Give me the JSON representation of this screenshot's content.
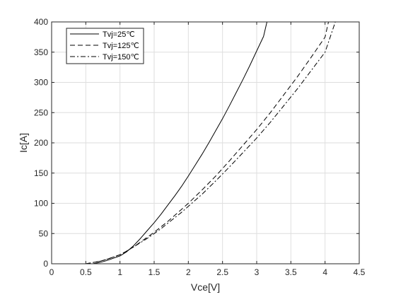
{
  "chart_data": {
    "type": "line",
    "xlabel": "Vce[V]",
    "ylabel": "Ic[A]",
    "xlim": [
      0,
      4.5
    ],
    "ylim": [
      0,
      400
    ],
    "xticks": [
      0,
      0.5,
      1,
      1.5,
      2,
      2.5,
      3,
      3.5,
      4,
      4.5
    ],
    "xtick_labels": [
      "0",
      "0.5",
      "1",
      "1.5",
      "2",
      "2.5",
      "3",
      "3.5",
      "4",
      "4.5"
    ],
    "yticks": [
      0,
      50,
      100,
      150,
      200,
      250,
      300,
      350,
      400
    ],
    "ytick_labels": [
      "0",
      "50",
      "100",
      "150",
      "200",
      "250",
      "300",
      "350",
      "400"
    ],
    "grid": true,
    "legend_position": "top-left",
    "series": [
      {
        "name": "Tvj=25℃",
        "style": "solid",
        "color": "#000000",
        "x": [
          0.6,
          0.7,
          0.8,
          0.9,
          1.0,
          1.1,
          1.2,
          1.3,
          1.4,
          1.5,
          1.6,
          1.7,
          1.8,
          1.9,
          2.0,
          2.1,
          2.2,
          2.3,
          2.4,
          2.5,
          2.6,
          2.7,
          2.8,
          2.9,
          3.0,
          3.1,
          3.15
        ],
        "y": [
          0,
          2,
          5,
          9,
          13,
          20,
          30,
          42,
          55,
          68,
          82,
          97,
          112,
          128,
          145,
          163,
          181,
          200,
          220,
          240,
          261,
          283,
          305,
          328,
          352,
          376,
          400
        ]
      },
      {
        "name": "Tvj=125℃",
        "style": "dashed",
        "color": "#000000",
        "x": [
          0.5,
          0.6,
          0.7,
          0.8,
          0.9,
          1.0,
          1.1,
          1.2,
          1.3,
          1.4,
          1.5,
          1.6,
          1.7,
          1.8,
          1.9,
          2.0,
          2.2,
          2.4,
          2.6,
          2.8,
          3.0,
          3.2,
          3.4,
          3.6,
          3.8,
          4.0,
          4.05
        ],
        "y": [
          0,
          2,
          4,
          7,
          11,
          15,
          21,
          28,
          36,
          44,
          52,
          61,
          70,
          80,
          90,
          100,
          122,
          145,
          170,
          196,
          222,
          250,
          280,
          310,
          342,
          375,
          400
        ]
      },
      {
        "name": "Tvj=150℃",
        "style": "dashdot",
        "color": "#000000",
        "x": [
          0.5,
          0.6,
          0.7,
          0.8,
          0.9,
          1.0,
          1.1,
          1.2,
          1.3,
          1.4,
          1.5,
          1.6,
          1.7,
          1.8,
          1.9,
          2.0,
          2.2,
          2.4,
          2.6,
          2.8,
          3.0,
          3.2,
          3.4,
          3.6,
          3.8,
          4.0,
          4.15
        ],
        "y": [
          0,
          2,
          4,
          7,
          11,
          15,
          21,
          28,
          35,
          42,
          50,
          58,
          67,
          76,
          85,
          95,
          115,
          137,
          160,
          184,
          208,
          234,
          262,
          290,
          320,
          350,
          400
        ]
      }
    ]
  }
}
